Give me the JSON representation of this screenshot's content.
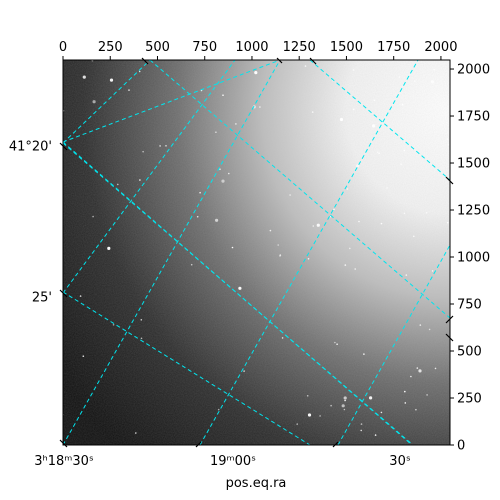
{
  "chart_data": {
    "type": "image",
    "xlabel": "pos.eq.ra",
    "ylabel": "",
    "pixel_axis": {
      "x_ticks": [
        0,
        250,
        500,
        750,
        1000,
        1250,
        1500,
        1750,
        2000
      ],
      "y_ticks": [
        0,
        250,
        500,
        750,
        1000,
        1250,
        1500,
        1750,
        2000
      ],
      "xlim": [
        0,
        2048
      ],
      "ylim": [
        0,
        2048
      ]
    },
    "world_axis": {
      "ra_tick_labels": [
        "3ʰ18ᵐ30ˢ",
        "19ᵐ00ˢ",
        "30ˢ"
      ],
      "dec_tick_labels": [
        "41°20'",
        "25'"
      ]
    },
    "colors": {
      "grid": "#00e5ee",
      "image_dark": "#0d0d0d",
      "image_bright": "#ffffff"
    },
    "grid": true
  }
}
